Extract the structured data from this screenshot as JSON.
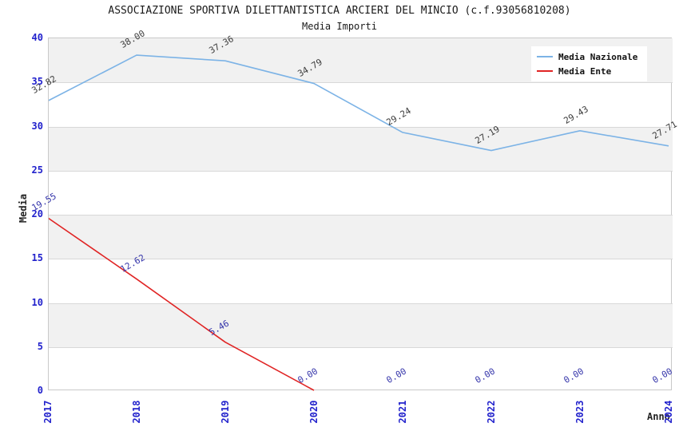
{
  "header": {
    "title": "ASSOCIAZIONE SPORTIVA DILETTANTISTICA ARCIERI DEL MINCIO (c.f.93056810208)",
    "subtitle": "Media Importi"
  },
  "axes": {
    "y_title": "Media",
    "x_title": "Anno"
  },
  "legend": {
    "items": [
      {
        "label": "Media Nazionale",
        "color": "#7cb3e6"
      },
      {
        "label": "Media Ente",
        "color": "#e02424"
      }
    ]
  },
  "colors": {
    "tick_label": "#2222cc",
    "band": "#f1f1f1",
    "grid": "#d8d8d8",
    "plot_border": "#c9c9c9"
  },
  "chart_data": {
    "type": "line",
    "title": "ASSOCIAZIONE SPORTIVA DILETTANTISTICA ARCIERI DEL MINCIO (c.f.93056810208)",
    "subtitle": "Media Importi",
    "xlabel": "Anno",
    "ylabel": "Media",
    "x": [
      "2017",
      "2018",
      "2019",
      "2020",
      "2021",
      "2022",
      "2023",
      "2024"
    ],
    "series": [
      {
        "name": "Media Nazionale",
        "color": "#7cb3e6",
        "values": [
          32.82,
          38.0,
          37.36,
          34.79,
          29.24,
          27.19,
          29.43,
          27.71
        ],
        "point_labels": [
          "32.82",
          "38.00",
          "37.36",
          "34.79",
          "29.24",
          "27.19",
          "29.43",
          "27.71"
        ],
        "label_color": "#3c3c3c"
      },
      {
        "name": "Media Ente",
        "color": "#e02424",
        "values": [
          19.55,
          12.62,
          5.46,
          0.0,
          0.0,
          0.0,
          0.0,
          0.0
        ],
        "point_labels": [
          "19.55",
          "12.62",
          "5.46",
          "0.00",
          "0.00",
          "0.00",
          "0.00",
          "0.00"
        ],
        "label_color": "#3434aa",
        "solid_until_index": 3
      }
    ],
    "ylim": [
      0,
      40
    ],
    "ytick_step": 5,
    "grid": "horizontal-bands",
    "legend_position": "top-right"
  }
}
